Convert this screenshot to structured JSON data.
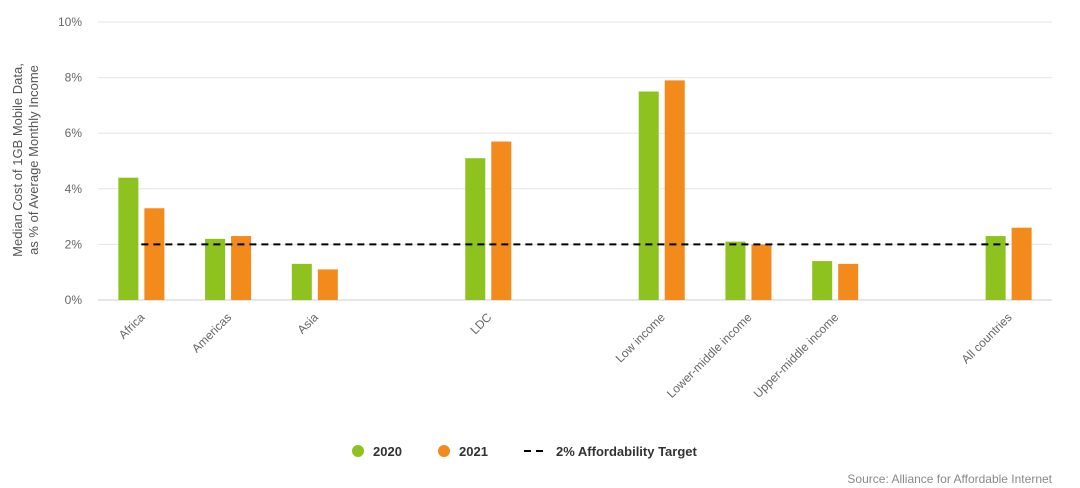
{
  "chart_data": {
    "type": "bar",
    "title": "",
    "xlabel": "",
    "ylabel_line1": "Median Cost of 1GB Mobile Data,",
    "ylabel_line2": "as % of Average Monthly Income",
    "ylim": [
      0,
      10
    ],
    "yticks": [
      "0%",
      "2%",
      "4%",
      "6%",
      "8%",
      "10%"
    ],
    "grid": true,
    "legend_position": "bottom-center",
    "categories": [
      "Africa",
      "Americas",
      "Asia",
      "LDC",
      "Low income",
      "Lower-middle income",
      "Upper-middle income",
      "All countries"
    ],
    "category_slots": [
      0,
      1,
      2,
      4,
      6,
      7,
      8,
      10
    ],
    "series": [
      {
        "name": "2020",
        "color": "#8dc21f",
        "values": [
          4.4,
          2.2,
          1.3,
          5.1,
          7.5,
          2.1,
          1.4,
          2.3
        ]
      },
      {
        "name": "2021",
        "color": "#f28a1c",
        "values": [
          3.3,
          2.3,
          1.1,
          5.7,
          7.9,
          2.0,
          1.3,
          2.6
        ]
      }
    ],
    "reference_line": {
      "name": "2% Affordability Target",
      "value": 2,
      "color": "#000000"
    },
    "source": "Source: Alliance for Affordable Internet"
  }
}
